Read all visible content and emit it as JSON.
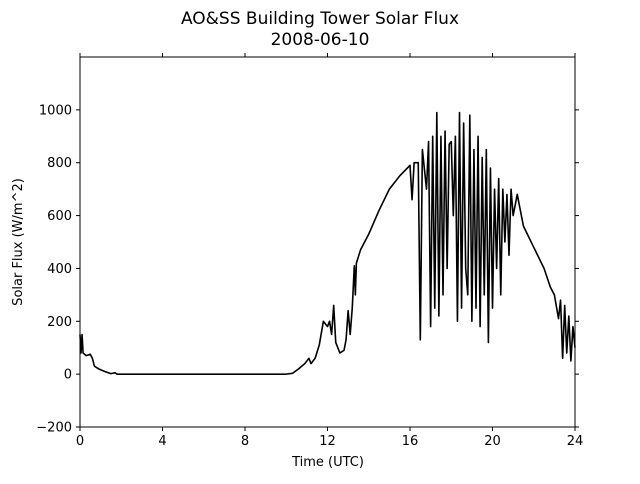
{
  "chart_data": {
    "type": "line",
    "title": "AO&SS Building Tower Solar Flux",
    "subtitle": "2008-06-10",
    "x_label": "Time (UTC)",
    "y_label": "Solar Flux (W/m^2)",
    "xlim": [
      0,
      24
    ],
    "xticks": [
      0,
      4,
      8,
      12,
      16,
      20,
      24
    ],
    "ylim": [
      -200,
      1200
    ],
    "yticks": [
      {
        "value": -200,
        "label": "−200"
      },
      0,
      200,
      400,
      600,
      800,
      1000
    ],
    "grid": false,
    "series": [
      {
        "color": "#000000",
        "x": [
          0,
          0.05,
          0.1,
          0.15,
          0.3,
          0.5,
          0.6,
          0.7,
          0.9,
          1.2,
          1.5,
          1.7,
          1.8,
          2,
          4,
          6,
          8,
          10,
          10.3,
          10.6,
          10.9,
          11.1,
          11.2,
          11.4,
          11.6,
          11.8,
          12.0,
          12.1,
          12.2,
          12.3,
          12.4,
          12.6,
          12.8,
          12.9,
          13.0,
          13.1,
          13.2,
          13.3,
          13.35,
          13.4,
          13.6,
          14,
          14.5,
          15,
          15.5,
          16,
          16.1,
          16.2,
          16.4,
          16.5,
          16.6,
          16.8,
          16.9,
          17.0,
          17.1,
          17.2,
          17.3,
          17.4,
          17.5,
          17.6,
          17.7,
          17.8,
          17.9,
          18.0,
          18.1,
          18.2,
          18.3,
          18.4,
          18.5,
          18.6,
          18.7,
          18.8,
          18.9,
          19.0,
          19.1,
          19.2,
          19.3,
          19.4,
          19.5,
          19.6,
          19.7,
          19.8,
          19.9,
          20.0,
          20.1,
          20.2,
          20.3,
          20.4,
          20.5,
          20.6,
          20.7,
          20.8,
          20.9,
          21,
          21.2,
          21.5,
          22,
          22.5,
          22.8,
          23,
          23.2,
          23.3,
          23.4,
          23.5,
          23.6,
          23.7,
          23.8,
          23.9,
          24.0
        ],
        "values": [
          150,
          80,
          150,
          80,
          70,
          75,
          60,
          30,
          20,
          10,
          2,
          5,
          0,
          0,
          0,
          0,
          0,
          0,
          3,
          20,
          40,
          60,
          40,
          60,
          110,
          200,
          180,
          200,
          150,
          260,
          120,
          80,
          90,
          130,
          240,
          150,
          250,
          410,
          300,
          420,
          470,
          530,
          620,
          700,
          750,
          790,
          660,
          800,
          800,
          130,
          850,
          700,
          880,
          180,
          900,
          250,
          990,
          220,
          900,
          300,
          920,
          400,
          870,
          880,
          600,
          900,
          200,
          990,
          250,
          950,
          400,
          300,
          980,
          200,
          850,
          250,
          900,
          180,
          820,
          300,
          850,
          120,
          780,
          250,
          700,
          400,
          740,
          300,
          700,
          500,
          680,
          450,
          700,
          600,
          680,
          560,
          480,
          400,
          330,
          300,
          210,
          280,
          60,
          260,
          80,
          220,
          50,
          180,
          100
        ]
      }
    ]
  }
}
